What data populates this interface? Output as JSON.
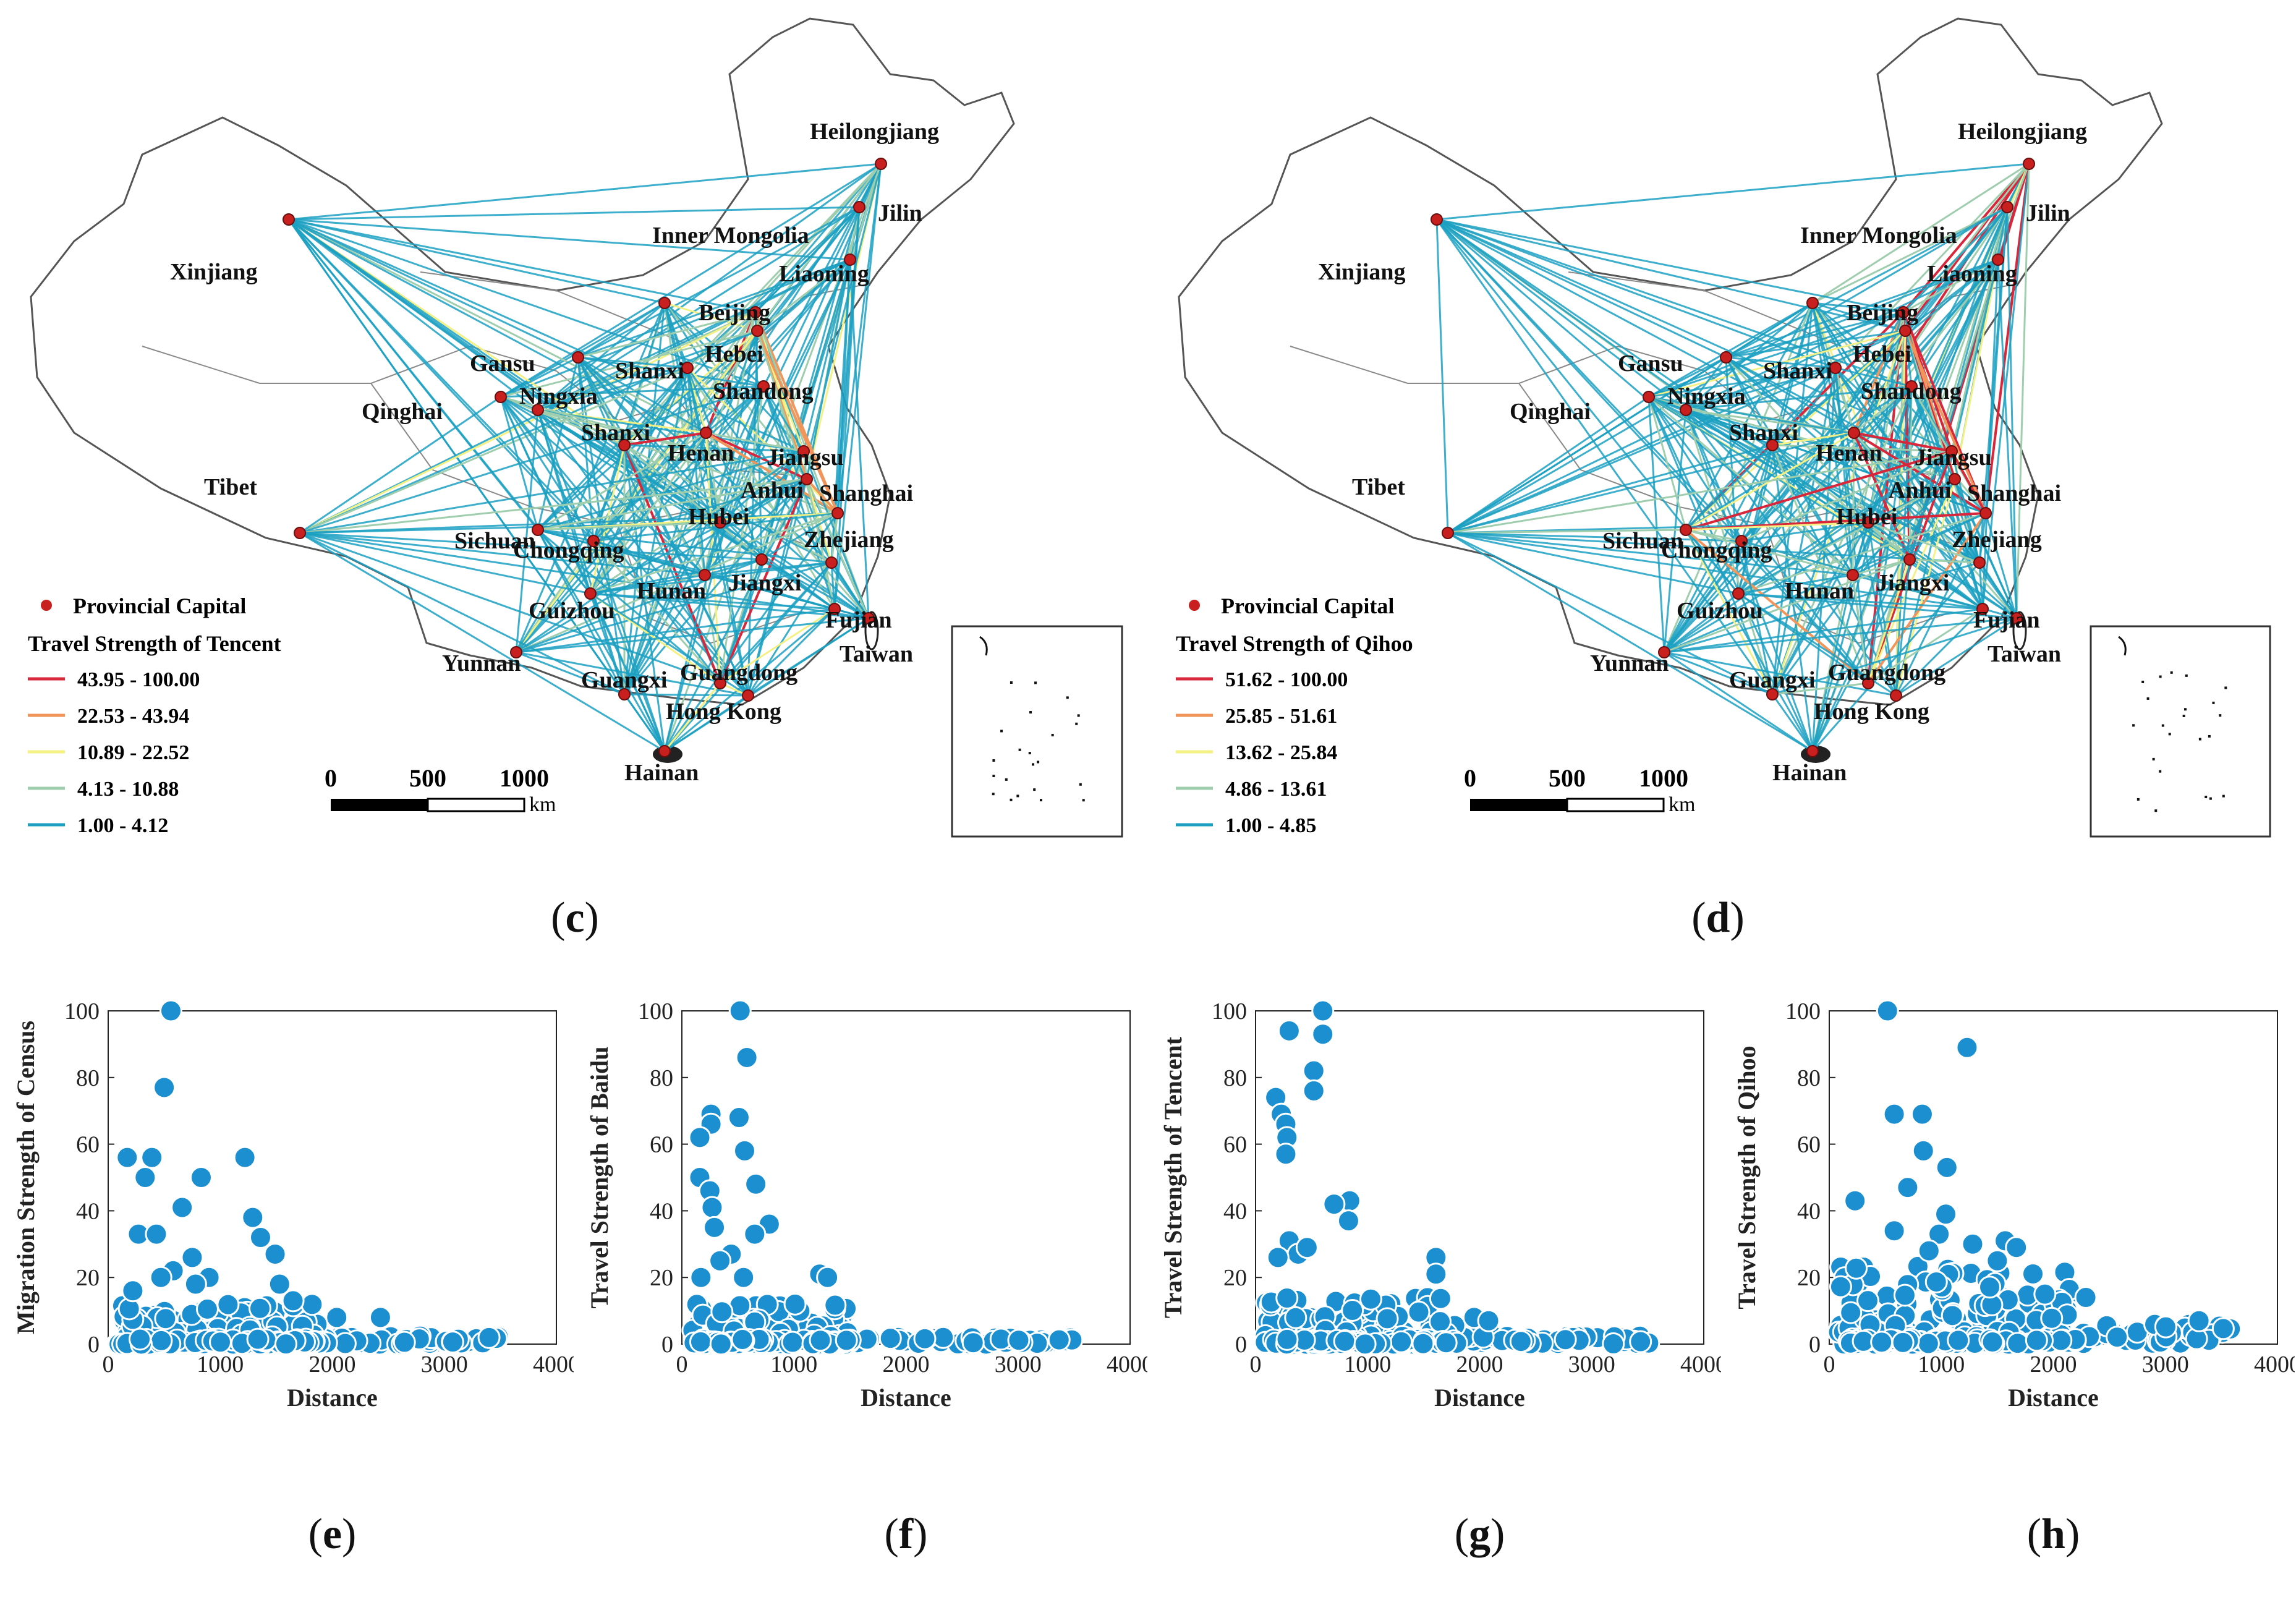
{
  "colors": {
    "capital": "#c8201f",
    "class1": "#d8263a",
    "class2": "#f1955a",
    "class3": "#f4f184",
    "class4": "#9fceae",
    "class5": "#1ba0c2",
    "point": "#1b8fd0",
    "border": "#555555"
  },
  "maps": [
    {
      "id": "c",
      "label": "c",
      "legend_capital": "Provincial Capital",
      "legend_title": "Travel Strength of Tencent",
      "classes": [
        "43.95 - 100.00",
        "22.53 - 43.94",
        "10.89 - 22.52",
        "4.13 - 10.88",
        "1.00 - 4.12"
      ],
      "scale_ticks": [
        "0",
        "500",
        "1000"
      ],
      "scale_unit": "km"
    },
    {
      "id": "d",
      "label": "d",
      "legend_capital": "Provincial Capital",
      "legend_title": "Travel Strength of Qihoo",
      "classes": [
        "51.62 - 100.00",
        "25.85 - 51.61",
        "13.62 - 25.84",
        "4.86 - 13.61",
        "1.00 - 4.85"
      ],
      "scale_ticks": [
        "0",
        "500",
        "1000"
      ],
      "scale_unit": "km"
    }
  ],
  "provinces": [
    "Heilongjiang",
    "Jilin",
    "Inner Mongolia",
    "Liaoning",
    "Xinjiang",
    "Beijing",
    "Hebei",
    "Gansu",
    "Shanxi",
    "Ningxia",
    "Qinghai",
    "Shandong",
    "Shanxi",
    "Henan",
    "Jiangsu",
    "Tibet",
    "Anhui",
    "Shanghai",
    "Hubei",
    "Sichuan",
    "Chongqing",
    "Zhejiang",
    "Hunan",
    "Jiangxi",
    "Guizhou",
    "Fujian",
    "Taiwan",
    "Yunnan",
    "Guangxi",
    "Guangdong",
    "Hong Kong",
    "Hainan"
  ],
  "chart_data": [
    {
      "type": "scatter",
      "label": "e",
      "xlabel": "Distance",
      "ylabel": "Migration Strength of Census",
      "xlim": [
        0,
        4000
      ],
      "ylim": [
        0,
        100
      ],
      "xticks": [
        "0",
        "1000",
        "2000",
        "3000",
        "4000"
      ],
      "yticks": [
        "0",
        "20",
        "40",
        "60",
        "80",
        "100"
      ],
      "highlights": [
        [
          560,
          100
        ],
        [
          500,
          77
        ],
        [
          170,
          56
        ],
        [
          390,
          56
        ],
        [
          1220,
          56
        ],
        [
          330,
          50
        ],
        [
          830,
          50
        ],
        [
          660,
          41
        ],
        [
          1290,
          38
        ],
        [
          270,
          33
        ],
        [
          430,
          33
        ],
        [
          1360,
          32
        ],
        [
          1490,
          27
        ],
        [
          750,
          26
        ],
        [
          580,
          22
        ],
        [
          900,
          20
        ],
        [
          470,
          20
        ],
        [
          1530,
          18
        ],
        [
          1650,
          13
        ],
        [
          2040,
          8
        ],
        [
          2430,
          8
        ],
        [
          220,
          16
        ],
        [
          780,
          18
        ]
      ],
      "base": {
        "x_max": 1850,
        "y_max": 12,
        "n": 130,
        "seed": 11
      },
      "tail": {
        "x_min": 1850,
        "x_max": 3550,
        "y_max": 2.5,
        "n": 45,
        "seed": 21
      }
    },
    {
      "type": "scatter",
      "label": "f",
      "xlabel": "Distance",
      "ylabel": "Travel Strength of Baidu",
      "xlim": [
        0,
        4000
      ],
      "ylim": [
        0,
        100
      ],
      "xticks": [
        "0",
        "1000",
        "2000",
        "3000",
        "4000"
      ],
      "yticks": [
        "0",
        "20",
        "40",
        "60",
        "80",
        "100"
      ],
      "highlights": [
        [
          520,
          100
        ],
        [
          580,
          86
        ],
        [
          260,
          69
        ],
        [
          260,
          66
        ],
        [
          510,
          68
        ],
        [
          160,
          62
        ],
        [
          560,
          58
        ],
        [
          160,
          50
        ],
        [
          660,
          48
        ],
        [
          250,
          46
        ],
        [
          270,
          41
        ],
        [
          780,
          36
        ],
        [
          290,
          35
        ],
        [
          650,
          33
        ],
        [
          440,
          27
        ],
        [
          170,
          20
        ],
        [
          340,
          25
        ],
        [
          1230,
          21
        ],
        [
          1300,
          20
        ],
        [
          1010,
          12
        ],
        [
          550,
          20
        ]
      ],
      "base": {
        "x_max": 1400,
        "y_max": 12,
        "n": 120,
        "seed": 31
      },
      "tail": {
        "x_min": 1400,
        "x_max": 3500,
        "y_max": 2,
        "n": 45,
        "seed": 41
      }
    },
    {
      "type": "scatter",
      "label": "g",
      "xlabel": "Distance",
      "ylabel": "Travel Strength of Tencent",
      "xlim": [
        0,
        4000
      ],
      "ylim": [
        0,
        100
      ],
      "xticks": [
        "0",
        "1000",
        "2000",
        "3000",
        "4000"
      ],
      "yticks": [
        "0",
        "20",
        "40",
        "60",
        "80",
        "100"
      ],
      "highlights": [
        [
          600,
          100
        ],
        [
          300,
          94
        ],
        [
          600,
          93
        ],
        [
          520,
          82
        ],
        [
          520,
          76
        ],
        [
          180,
          74
        ],
        [
          230,
          69
        ],
        [
          270,
          66
        ],
        [
          280,
          62
        ],
        [
          270,
          57
        ],
        [
          840,
          43
        ],
        [
          700,
          42
        ],
        [
          830,
          37
        ],
        [
          300,
          31
        ],
        [
          380,
          27
        ],
        [
          1610,
          26
        ],
        [
          1610,
          21
        ],
        [
          200,
          26
        ],
        [
          460,
          29
        ],
        [
          1950,
          8
        ],
        [
          2080,
          7
        ]
      ],
      "base": {
        "x_max": 1700,
        "y_max": 14,
        "n": 130,
        "seed": 51
      },
      "tail": {
        "x_min": 1700,
        "x_max": 3550,
        "y_max": 2.5,
        "n": 45,
        "seed": 61
      }
    },
    {
      "type": "scatter",
      "label": "h",
      "xlabel": "Distance",
      "ylabel": "Travel Strength of Qihoo",
      "xlim": [
        0,
        4000
      ],
      "ylim": [
        0,
        100
      ],
      "xticks": [
        "0",
        "1000",
        "2000",
        "3000",
        "4000"
      ],
      "yticks": [
        "0",
        "20",
        "40",
        "60",
        "80",
        "100"
      ],
      "highlights": [
        [
          520,
          100
        ],
        [
          1230,
          89
        ],
        [
          580,
          69
        ],
        [
          830,
          69
        ],
        [
          840,
          58
        ],
        [
          1050,
          53
        ],
        [
          700,
          47
        ],
        [
          230,
          43
        ],
        [
          1040,
          39
        ],
        [
          580,
          34
        ],
        [
          980,
          33
        ],
        [
          1280,
          30
        ],
        [
          1570,
          31
        ],
        [
          1670,
          29
        ],
        [
          2290,
          14
        ],
        [
          3300,
          7
        ],
        [
          1500,
          25
        ],
        [
          890,
          28
        ]
      ],
      "base": {
        "x_max": 2100,
        "y_max": 24,
        "n": 170,
        "seed": 71
      },
      "tail": {
        "x_min": 2100,
        "x_max": 3600,
        "y_max": 6,
        "n": 45,
        "seed": 81
      }
    }
  ]
}
